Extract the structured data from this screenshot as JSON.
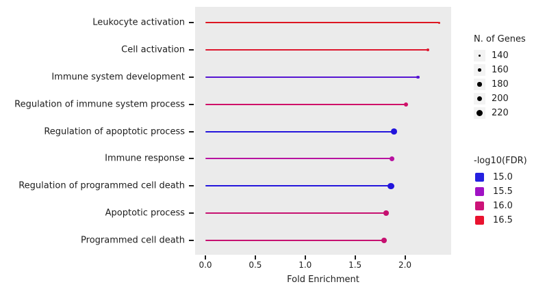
{
  "chart_data": {
    "type": "lollipop",
    "title": "",
    "xlabel": "Fold Enrichment",
    "ylabel": "",
    "xlim": [
      -0.1,
      2.46
    ],
    "x_ticks": [
      0.0,
      0.5,
      1.0,
      1.5,
      2.0
    ],
    "grid": false,
    "plot_background": "#ebebeb",
    "legend_position": "right",
    "categories": [
      "Leukocyte activation",
      "Cell activation",
      "Immune system development",
      "Regulation of immune system process",
      "Regulation of apoptotic process",
      "Immune response",
      "Regulation of programmed cell death",
      "Apoptotic process",
      "Programmed cell death"
    ],
    "series": [
      {
        "category": "Leukocyte activation",
        "fold_enrichment": 2.34,
        "n_genes": 140,
        "neg_log10_fdr": 16.6,
        "color": "#dd1620"
      },
      {
        "category": "Cell activation",
        "fold_enrichment": 2.23,
        "n_genes": 160,
        "neg_log10_fdr": 16.5,
        "color": "#dd152c"
      },
      {
        "category": "Immune system development",
        "fold_enrichment": 2.13,
        "n_genes": 155,
        "neg_log10_fdr": 15.2,
        "color": "#5514d2"
      },
      {
        "category": "Regulation of immune system process",
        "fold_enrichment": 2.01,
        "n_genes": 175,
        "neg_log10_fdr": 16.1,
        "color": "#cf1068"
      },
      {
        "category": "Regulation of apoptotic process",
        "fold_enrichment": 1.89,
        "n_genes": 210,
        "neg_log10_fdr": 15.0,
        "color": "#2214dc"
      },
      {
        "category": "Immune response",
        "fold_enrichment": 1.87,
        "n_genes": 185,
        "neg_log10_fdr": 15.8,
        "color": "#b812a0"
      },
      {
        "category": "Regulation of programmed cell death",
        "fold_enrichment": 1.86,
        "n_genes": 220,
        "neg_log10_fdr": 15.0,
        "color": "#2214dc"
      },
      {
        "category": "Apoptotic process",
        "fold_enrichment": 1.81,
        "n_genes": 195,
        "neg_log10_fdr": 16.0,
        "color": "#c61070"
      },
      {
        "category": "Programmed cell death",
        "fold_enrichment": 1.79,
        "n_genes": 200,
        "neg_log10_fdr": 16.0,
        "color": "#c61070"
      }
    ],
    "size_legend": {
      "title": "N. of Genes",
      "items": [
        {
          "label": "140",
          "n": 140
        },
        {
          "label": "160",
          "n": 160
        },
        {
          "label": "180",
          "n": 180
        },
        {
          "label": "200",
          "n": 200
        },
        {
          "label": "220",
          "n": 220
        }
      ]
    },
    "color_legend": {
      "title": "-log10(FDR)",
      "items": [
        {
          "label": "15.0",
          "color": "#2420e0"
        },
        {
          "label": "15.5",
          "color": "#a012c4"
        },
        {
          "label": "16.0",
          "color": "#cc1378"
        },
        {
          "label": "16.5",
          "color": "#e9122f"
        }
      ]
    }
  }
}
